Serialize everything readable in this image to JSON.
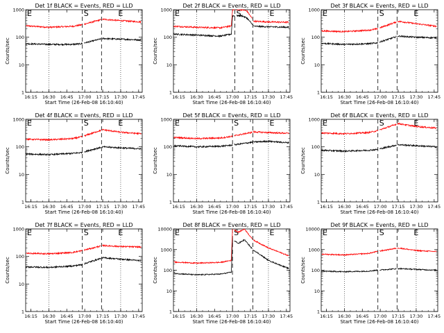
{
  "figure": {
    "xtick_labels": [
      "16:15",
      "16:30",
      "16:45",
      "17:00",
      "17:15",
      "17:30",
      "17:45"
    ],
    "ytick_labels": [
      "1",
      "10",
      "100",
      "1000",
      "10000"
    ],
    "ylabel": "Counts/sec",
    "xlabel": "Start Time (26-Feb-08 16:10:40)",
    "marker_labels": {
      "left": "E",
      "start": "S",
      "end": "E"
    }
  },
  "chart_data": [
    {
      "type": "line",
      "title": "Det 1f BLACK = Events, RED = LLD",
      "ylog": true,
      "ylim": [
        1,
        1000
      ],
      "xlim": [
        "16:10:40",
        "17:48:00"
      ],
      "ylabel": "Counts/sec",
      "xlabel": "Start Time (26-Feb-08 16:10:40)",
      "x_ticks": [
        "16:15",
        "16:30",
        "16:45",
        "17:00",
        "17:15",
        "17:30",
        "17:45"
      ],
      "y_ticks": [
        1,
        10,
        100,
        1000
      ],
      "attenuator_times": [
        "16:58",
        "17:14"
      ],
      "dotted_grid_times": [
        "16:30",
        "17:30"
      ],
      "series": [
        {
          "color": "#ff0000",
          "x": [
            "16:11",
            "16:30",
            "16:50",
            "16:57",
            "17:15",
            "17:30",
            "17:47"
          ],
          "values": [
            260,
            230,
            250,
            280,
            450,
            400,
            360
          ]
        },
        {
          "color": "#000000",
          "x": [
            "16:11",
            "16:30",
            "16:50",
            "16:57",
            "17:15",
            "17:30",
            "17:47"
          ],
          "values": [
            58,
            55,
            55,
            58,
            90,
            85,
            80
          ]
        }
      ]
    },
    {
      "type": "line",
      "title": "Det 2f BLACK = Events, RED = LLD",
      "ylog": true,
      "ylim": [
        1,
        1000
      ],
      "xlim": [
        "16:10:40",
        "17:48:00"
      ],
      "ylabel": "Counts/sec",
      "xlabel": "Start Time (26-Feb-08 16:10:40)",
      "x_ticks": [
        "16:15",
        "16:30",
        "16:45",
        "17:00",
        "17:15",
        "17:30",
        "17:45"
      ],
      "y_ticks": [
        1,
        10,
        100,
        1000
      ],
      "attenuator_times": [
        "17:02",
        "17:17"
      ],
      "dotted_grid_times": [
        "16:30",
        "17:30"
      ],
      "series": [
        {
          "color": "#ff0000",
          "x": [
            "16:11",
            "16:30",
            "16:50",
            "16:59",
            "17:00",
            "17:08",
            "17:12",
            "17:18",
            "17:30",
            "17:47"
          ],
          "values": [
            250,
            230,
            220,
            260,
            1000,
            1000,
            900,
            380,
            360,
            350
          ]
        },
        {
          "color": "#000000",
          "x": [
            "16:11",
            "16:30",
            "16:50",
            "16:59",
            "17:00",
            "17:08",
            "17:12",
            "17:18",
            "17:30",
            "17:47"
          ],
          "values": [
            130,
            120,
            110,
            130,
            600,
            600,
            500,
            250,
            240,
            230
          ]
        }
      ]
    },
    {
      "type": "line",
      "title": "Det 3f BLACK = Events, RED = LLD",
      "ylog": true,
      "ylim": [
        1,
        1000
      ],
      "xlim": [
        "16:10:40",
        "17:48:00"
      ],
      "ylabel": "Counts/sec",
      "xlabel": "Start Time (26-Feb-08 16:10:40)",
      "x_ticks": [
        "16:15",
        "16:30",
        "16:45",
        "17:00",
        "17:15",
        "17:30",
        "17:45"
      ],
      "y_ticks": [
        1,
        10,
        100,
        1000
      ],
      "attenuator_times": [
        "16:58",
        "17:14"
      ],
      "dotted_grid_times": [
        "16:30",
        "17:30"
      ],
      "series": [
        {
          "color": "#ff0000",
          "x": [
            "16:11",
            "16:30",
            "16:50",
            "16:57",
            "17:15",
            "17:30",
            "17:47"
          ],
          "values": [
            170,
            160,
            180,
            200,
            380,
            310,
            250
          ]
        },
        {
          "color": "#000000",
          "x": [
            "16:11",
            "16:30",
            "16:50",
            "16:57",
            "17:15",
            "17:30",
            "17:47"
          ],
          "values": [
            60,
            55,
            58,
            62,
            110,
            100,
            95
          ]
        }
      ]
    },
    {
      "type": "line",
      "title": "Det 4f BLACK = Events, RED = LLD",
      "ylog": true,
      "ylim": [
        1,
        1000
      ],
      "xlim": [
        "16:10:40",
        "17:48:00"
      ],
      "ylabel": "Counts/sec",
      "xlabel": "Start Time (26-Feb-08 16:10:40)",
      "x_ticks": [
        "16:15",
        "16:30",
        "16:45",
        "17:00",
        "17:15",
        "17:30",
        "17:45"
      ],
      "y_ticks": [
        1,
        10,
        100,
        1000
      ],
      "attenuator_times": [
        "16:58",
        "17:14"
      ],
      "dotted_grid_times": [
        "16:30",
        "17:30"
      ],
      "series": [
        {
          "color": "#ff0000",
          "x": [
            "16:11",
            "16:30",
            "16:50",
            "16:57",
            "17:15",
            "17:30",
            "17:47"
          ],
          "values": [
            190,
            180,
            200,
            230,
            420,
            340,
            300
          ]
        },
        {
          "color": "#000000",
          "x": [
            "16:11",
            "16:30",
            "16:50",
            "16:57",
            "17:15",
            "17:30",
            "17:47"
          ],
          "values": [
            55,
            52,
            58,
            62,
            100,
            92,
            85
          ]
        }
      ]
    },
    {
      "type": "line",
      "title": "Det 5f BLACK = Events, RED = LLD",
      "ylog": true,
      "ylim": [
        1,
        1000
      ],
      "xlim": [
        "16:10:40",
        "17:48:00"
      ],
      "ylabel": "Counts/sec",
      "xlabel": "Start Time (26-Feb-08 16:10:40)",
      "x_ticks": [
        "16:15",
        "16:30",
        "16:45",
        "17:00",
        "17:15",
        "17:30",
        "17:45"
      ],
      "y_ticks": [
        1,
        10,
        100,
        1000
      ],
      "attenuator_times": [
        "17:00",
        "17:17"
      ],
      "dotted_grid_times": [
        "16:30",
        "17:30"
      ],
      "series": [
        {
          "color": "#ff0000",
          "x": [
            "16:11",
            "16:30",
            "16:50",
            "16:59",
            "17:18",
            "17:30",
            "17:47"
          ],
          "values": [
            220,
            200,
            210,
            240,
            350,
            330,
            310
          ]
        },
        {
          "color": "#000000",
          "x": [
            "16:11",
            "16:30",
            "16:50",
            "16:59",
            "17:18",
            "17:30",
            "17:47"
          ],
          "values": [
            110,
            100,
            105,
            115,
            150,
            160,
            140
          ]
        }
      ]
    },
    {
      "type": "line",
      "title": "Det 6f BLACK = Events, RED = LLD",
      "ylog": true,
      "ylim": [
        1,
        1000
      ],
      "xlim": [
        "16:10:40",
        "17:48:00"
      ],
      "ylabel": "Counts/sec",
      "xlabel": "Start Time (26-Feb-08 16:10:40)",
      "x_ticks": [
        "16:15",
        "16:30",
        "16:45",
        "17:00",
        "17:15",
        "17:30",
        "17:45"
      ],
      "y_ticks": [
        1,
        10,
        100,
        1000
      ],
      "attenuator_times": [
        "16:58",
        "17:14"
      ],
      "dotted_grid_times": [
        "16:30",
        "17:30"
      ],
      "series": [
        {
          "color": "#ff0000",
          "x": [
            "16:11",
            "16:30",
            "16:50",
            "16:57",
            "17:15",
            "17:30",
            "17:47"
          ],
          "values": [
            320,
            300,
            330,
            380,
            700,
            550,
            480
          ]
        },
        {
          "color": "#000000",
          "x": [
            "16:11",
            "16:30",
            "16:50",
            "16:57",
            "17:15",
            "17:30",
            "17:47"
          ],
          "values": [
            75,
            70,
            75,
            80,
            120,
            110,
            100
          ]
        }
      ]
    },
    {
      "type": "line",
      "title": "Det 7f BLACK = Events, RED = LLD",
      "ylog": true,
      "ylim": [
        1,
        1000
      ],
      "xlim": [
        "16:10:40",
        "17:48:00"
      ],
      "ylabel": "Counts/sec",
      "xlabel": "Start Time (26-Feb-08 16:10:40)",
      "x_ticks": [
        "16:15",
        "16:30",
        "16:45",
        "17:00",
        "17:15",
        "17:30",
        "17:45"
      ],
      "y_ticks": [
        1,
        10,
        100,
        1000
      ],
      "attenuator_times": [
        "16:58",
        "17:14"
      ],
      "dotted_grid_times": [
        "16:30",
        "17:30"
      ],
      "series": [
        {
          "color": "#ff0000",
          "x": [
            "16:11",
            "16:30",
            "16:50",
            "16:57",
            "17:15",
            "17:30",
            "17:47"
          ],
          "values": [
            130,
            125,
            140,
            160,
            250,
            230,
            220
          ]
        },
        {
          "color": "#000000",
          "x": [
            "16:11",
            "16:30",
            "16:50",
            "16:57",
            "17:15",
            "17:30",
            "17:47"
          ],
          "values": [
            42,
            40,
            45,
            50,
            90,
            80,
            70
          ]
        }
      ]
    },
    {
      "type": "line",
      "title": "Det 8f BLACK = Events, RED = LLD",
      "ylog": true,
      "ylim": [
        1,
        10000
      ],
      "xlim": [
        "16:10:40",
        "17:48:00"
      ],
      "ylabel": "Counts/sec",
      "xlabel": "Start Time (26-Feb-08 16:10:40)",
      "x_ticks": [
        "16:15",
        "16:30",
        "16:45",
        "17:00",
        "17:15",
        "17:30",
        "17:45"
      ],
      "y_ticks": [
        1,
        10,
        100,
        1000,
        10000
      ],
      "attenuator_times": [
        "17:00",
        "17:17"
      ],
      "dotted_grid_times": [
        "16:30",
        "17:30"
      ],
      "series": [
        {
          "color": "#ff0000",
          "x": [
            "16:11",
            "16:30",
            "16:50",
            "16:59",
            "17:00",
            "17:05",
            "17:10",
            "17:17",
            "17:30",
            "17:47"
          ],
          "values": [
            250,
            220,
            240,
            300,
            10000,
            7000,
            10000,
            3000,
            1200,
            500
          ]
        },
        {
          "color": "#000000",
          "x": [
            "16:11",
            "16:30",
            "16:50",
            "16:59",
            "17:00",
            "17:05",
            "17:10",
            "17:17",
            "17:30",
            "17:47"
          ],
          "values": [
            70,
            60,
            65,
            80,
            3000,
            2000,
            3000,
            1000,
            300,
            120
          ]
        }
      ]
    },
    {
      "type": "line",
      "title": "Det 9f BLACK = Events, RED = LLD",
      "ylog": true,
      "ylim": [
        1,
        10000
      ],
      "xlim": [
        "16:10:40",
        "17:48:00"
      ],
      "ylabel": "Counts/sec",
      "xlabel": "Start Time (26-Feb-08 16:10:40)",
      "x_ticks": [
        "16:15",
        "16:30",
        "16:45",
        "17:00",
        "17:15",
        "17:30",
        "17:45"
      ],
      "y_ticks": [
        1,
        10,
        100,
        1000,
        10000
      ],
      "attenuator_times": [
        "16:58",
        "17:14"
      ],
      "dotted_grid_times": [
        "16:30",
        "17:30"
      ],
      "series": [
        {
          "color": "#ff0000",
          "x": [
            "16:11",
            "16:30",
            "16:50",
            "16:57",
            "17:15",
            "17:30",
            "17:47"
          ],
          "values": [
            600,
            550,
            650,
            800,
            1200,
            900,
            800
          ]
        },
        {
          "color": "#000000",
          "x": [
            "16:11",
            "16:30",
            "16:50",
            "16:57",
            "17:15",
            "17:30",
            "17:47"
          ],
          "values": [
            90,
            85,
            90,
            100,
            120,
            110,
            100
          ]
        }
      ]
    }
  ]
}
